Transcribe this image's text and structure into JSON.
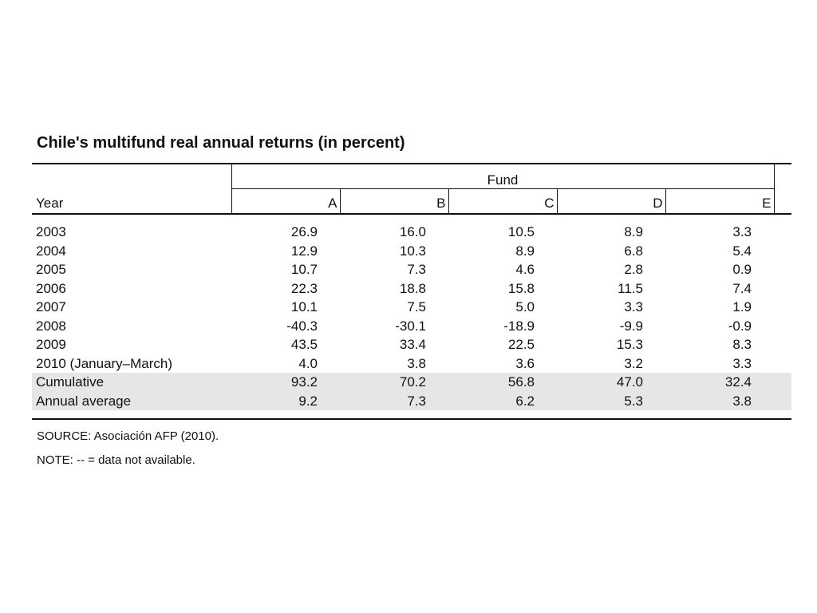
{
  "title": "Chile's multifund real annual returns (in percent)",
  "table": {
    "year_header": "Year",
    "group_header": "Fund",
    "fund_columns": [
      "A",
      "B",
      "C",
      "D",
      "E"
    ],
    "rows": [
      {
        "year": "2003",
        "values": [
          "26.9",
          "16.0",
          "10.5",
          "8.9",
          "3.3"
        ],
        "shaded": false
      },
      {
        "year": "2004",
        "values": [
          "12.9",
          "10.3",
          "8.9",
          "6.8",
          "5.4"
        ],
        "shaded": false
      },
      {
        "year": "2005",
        "values": [
          "10.7",
          "7.3",
          "4.6",
          "2.8",
          "0.9"
        ],
        "shaded": false
      },
      {
        "year": "2006",
        "values": [
          "22.3",
          "18.8",
          "15.8",
          "11.5",
          "7.4"
        ],
        "shaded": false
      },
      {
        "year": "2007",
        "values": [
          "10.1",
          "7.5",
          "5.0",
          "3.3",
          "1.9"
        ],
        "shaded": false
      },
      {
        "year": "2008",
        "values": [
          "-40.3",
          "-30.1",
          "-18.9",
          "-9.9",
          "-0.9"
        ],
        "shaded": false
      },
      {
        "year": "2009",
        "values": [
          "43.5",
          "33.4",
          "22.5",
          "15.3",
          "8.3"
        ],
        "shaded": false
      },
      {
        "year": "2010 (January–March)",
        "values": [
          "4.0",
          "3.8",
          "3.6",
          "3.2",
          "3.3"
        ],
        "shaded": false
      },
      {
        "year": "Cumulative",
        "values": [
          "93.2",
          "70.2",
          "56.8",
          "47.0",
          "32.4"
        ],
        "shaded": true
      },
      {
        "year": "Annual average",
        "values": [
          "9.2",
          "7.3",
          "6.2",
          "5.3",
          "3.8"
        ],
        "shaded": true
      }
    ]
  },
  "source": "SOURCE: Asociación AFP (2010).",
  "note": "NOTE:  -- = data not available."
}
